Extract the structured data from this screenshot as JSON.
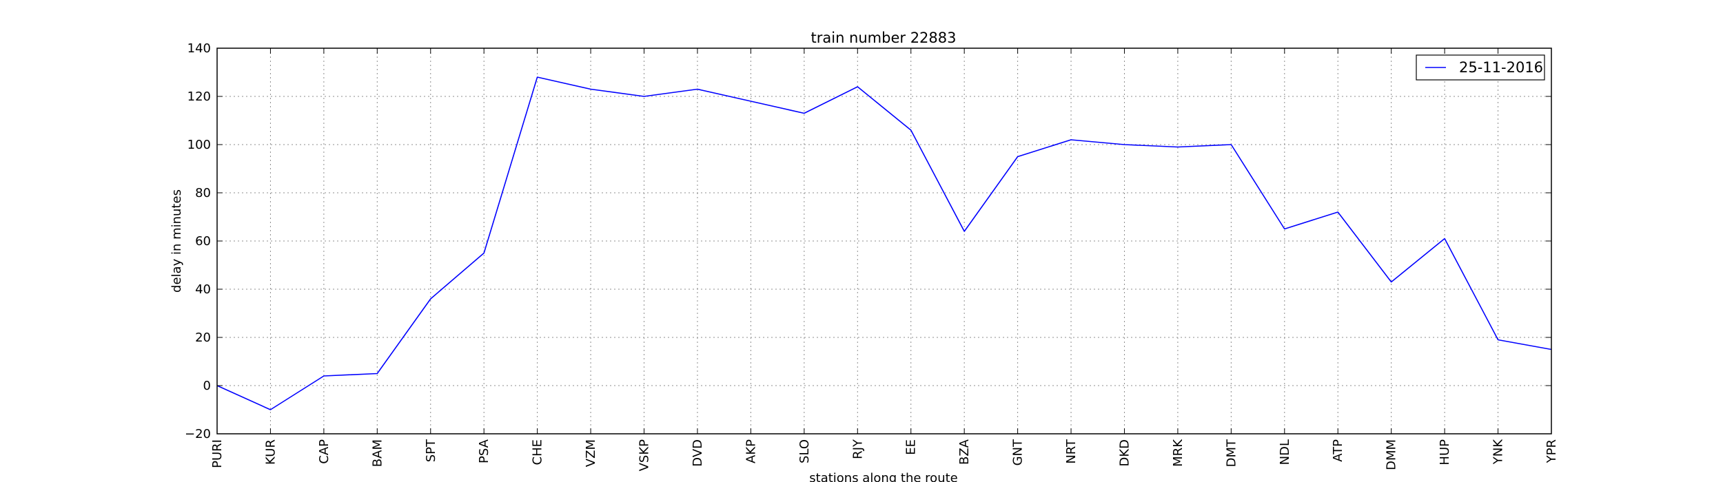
{
  "chart_data": {
    "type": "line",
    "title": "train number 22883",
    "xlabel": "stations along the route",
    "ylabel": "delay in minutes",
    "categories": [
      "PURI",
      "KUR",
      "CAP",
      "BAM",
      "SPT",
      "PSA",
      "CHE",
      "VZM",
      "VSKP",
      "DVD",
      "AKP",
      "SLO",
      "RJY",
      "EE",
      "BZA",
      "GNT",
      "NRT",
      "DKD",
      "MRK",
      "DMT",
      "NDL",
      "ATP",
      "DMM",
      "HUP",
      "YNK",
      "YPR"
    ],
    "series": [
      {
        "name": "25-11-2016",
        "color": "#0000ff",
        "values": [
          0,
          -10,
          4,
          5,
          36,
          55,
          128,
          123,
          120,
          123,
          118,
          113,
          124,
          106,
          64,
          95,
          102,
          100,
          99,
          100,
          65,
          72,
          43,
          61,
          19,
          15
        ]
      }
    ],
    "ylim": [
      -20,
      140
    ],
    "yticks": [
      -20,
      0,
      20,
      40,
      60,
      80,
      100,
      120,
      140
    ],
    "grid": true,
    "legend_position": "top-right"
  }
}
